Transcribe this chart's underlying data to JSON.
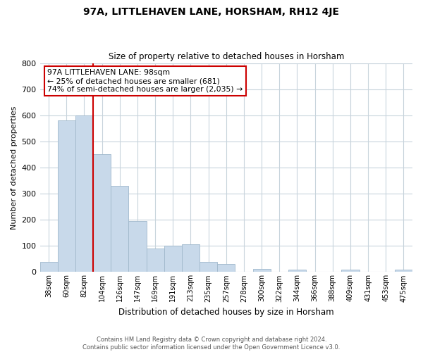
{
  "title": "97A, LITTLEHAVEN LANE, HORSHAM, RH12 4JE",
  "subtitle": "Size of property relative to detached houses in Horsham",
  "xlabel": "Distribution of detached houses by size in Horsham",
  "ylabel": "Number of detached properties",
  "bar_labels": [
    "38sqm",
    "60sqm",
    "82sqm",
    "104sqm",
    "126sqm",
    "147sqm",
    "169sqm",
    "191sqm",
    "213sqm",
    "235sqm",
    "257sqm",
    "278sqm",
    "300sqm",
    "322sqm",
    "344sqm",
    "366sqm",
    "388sqm",
    "409sqm",
    "431sqm",
    "453sqm",
    "475sqm"
  ],
  "bar_values": [
    38,
    580,
    600,
    450,
    330,
    195,
    90,
    100,
    105,
    38,
    32,
    0,
    12,
    0,
    10,
    0,
    0,
    10,
    0,
    0,
    10
  ],
  "bar_color": "#c8d9ea",
  "bar_edge_color": "#a0b8cc",
  "ylim": [
    0,
    800
  ],
  "yticks": [
    0,
    100,
    200,
    300,
    400,
    500,
    600,
    700,
    800
  ],
  "reference_line_color": "#cc0000",
  "annotation_title": "97A LITTLEHAVEN LANE: 98sqm",
  "annotation_line1": "← 25% of detached houses are smaller (681)",
  "annotation_line2": "74% of semi-detached houses are larger (2,035) →",
  "annotation_box_color": "#ffffff",
  "annotation_box_edge": "#cc0000",
  "footer_line1": "Contains HM Land Registry data © Crown copyright and database right 2024.",
  "footer_line2": "Contains public sector information licensed under the Open Government Licence v3.0.",
  "bg_color": "#ffffff",
  "grid_color": "#c8d4dc"
}
